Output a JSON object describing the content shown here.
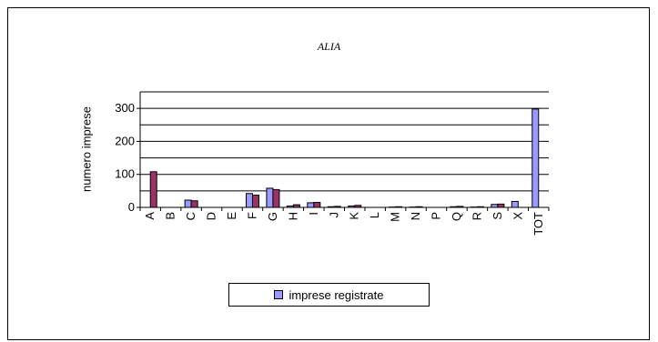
{
  "chart_data": {
    "type": "bar",
    "title": "ALIA",
    "xlabel": "",
    "ylabel": "numero imprese",
    "ylim": [
      0,
      350
    ],
    "yticks": [
      "0",
      "100",
      "200",
      "300"
    ],
    "categories": [
      "A",
      "B",
      "C",
      "D",
      "E",
      "F",
      "G",
      "H",
      "I",
      "J",
      "K",
      "L",
      "M",
      "N",
      "P",
      "Q",
      "R",
      "S",
      "X",
      "TOT"
    ],
    "series": [
      {
        "name": "imprese registrate",
        "color": "#9999ff",
        "values": [
          0,
          0,
          22,
          0,
          0,
          42,
          58,
          4,
          14,
          2,
          4,
          0,
          1,
          1,
          0,
          2,
          1,
          9,
          18,
          298
        ]
      },
      {
        "name": "",
        "color": "#993366",
        "values": [
          108,
          0,
          20,
          0,
          0,
          37,
          54,
          8,
          15,
          3,
          6,
          0,
          2,
          2,
          0,
          3,
          2,
          10,
          0,
          0
        ]
      }
    ],
    "grid": true,
    "legend_placement": "bottom"
  },
  "legend": {
    "label": "imprese registrate",
    "color": "#9999ff"
  }
}
